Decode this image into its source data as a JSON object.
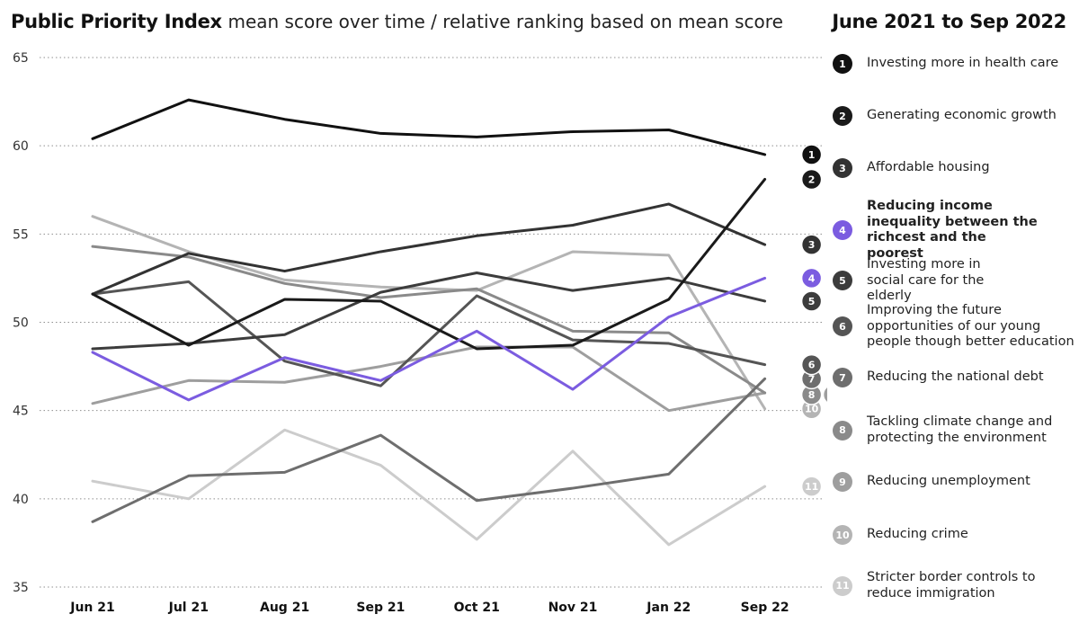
{
  "header": {
    "title_bold": "Public Priority Index",
    "title_rest": "mean score over time / relative ranking based on mean score",
    "period": "June 2021 to Sep 2022"
  },
  "chart_data": {
    "type": "line",
    "x": [
      "Jun 21",
      "Jul 21",
      "Aug 21",
      "Sep 21",
      "Oct 21",
      "Nov 21",
      "Jan 22",
      "Sep 22"
    ],
    "ylim": [
      35,
      65
    ],
    "yticks": [
      35,
      40,
      45,
      50,
      55,
      60,
      65
    ],
    "grid": true,
    "highlight_color": "#7b5ce0",
    "series": [
      {
        "rank": 1,
        "name": "Investing more in health care",
        "color": "#111111",
        "values": [
          60.4,
          62.6,
          61.5,
          60.7,
          60.5,
          60.8,
          60.9,
          59.5
        ]
      },
      {
        "rank": 2,
        "name": "Generating economic growth",
        "color": "#1a1a1a",
        "values": [
          51.6,
          48.7,
          51.3,
          51.2,
          48.5,
          48.7,
          51.3,
          58.1
        ]
      },
      {
        "rank": 3,
        "name": "Affordable housing",
        "color": "#333333",
        "values": [
          51.6,
          53.9,
          52.9,
          54.0,
          54.9,
          55.5,
          56.7,
          54.4
        ]
      },
      {
        "rank": 4,
        "name": "Reducing income inequality between the richcest and the poorest",
        "color": "#7b5ce0",
        "highlight": true,
        "values": [
          48.3,
          45.6,
          48.0,
          46.7,
          49.5,
          46.2,
          50.3,
          52.5
        ]
      },
      {
        "rank": 5,
        "name": "Investing more in social care for the elderly",
        "color": "#3c3c3c",
        "values": [
          48.5,
          48.8,
          49.3,
          51.7,
          52.8,
          51.8,
          52.5,
          51.2
        ]
      },
      {
        "rank": 6,
        "name": "Improving the future opportunities of our young people though better education",
        "color": "#555555",
        "values": [
          51.6,
          52.3,
          47.8,
          46.4,
          51.5,
          49.0,
          48.8,
          47.6
        ]
      },
      {
        "rank": 7,
        "name": "Reducing the national debt",
        "color": "#6e6e6e",
        "values": [
          38.7,
          41.3,
          41.5,
          43.6,
          39.9,
          40.6,
          41.4,
          46.8
        ]
      },
      {
        "rank": 8,
        "name": "Tackling climate change and protecting the environment",
        "color": "#8a8a8a",
        "values": [
          54.3,
          53.7,
          52.2,
          51.4,
          51.9,
          49.5,
          49.4,
          46.0
        ]
      },
      {
        "rank": 9,
        "name": "Reducing unemployment",
        "color": "#9e9e9e",
        "values": [
          45.4,
          46.7,
          46.6,
          47.5,
          48.6,
          48.6,
          45.0,
          46.0
        ]
      },
      {
        "rank": 10,
        "name": "Reducing crime",
        "color": "#b4b4b4",
        "values": [
          56.0,
          54.0,
          52.4,
          52.0,
          51.8,
          54.0,
          53.8,
          45.1
        ]
      },
      {
        "rank": 11,
        "name": "Stricter border controls to reduce immigration",
        "color": "#cccccc",
        "values": [
          41.0,
          40.0,
          43.9,
          41.9,
          37.7,
          42.7,
          37.4,
          40.7
        ]
      }
    ]
  }
}
